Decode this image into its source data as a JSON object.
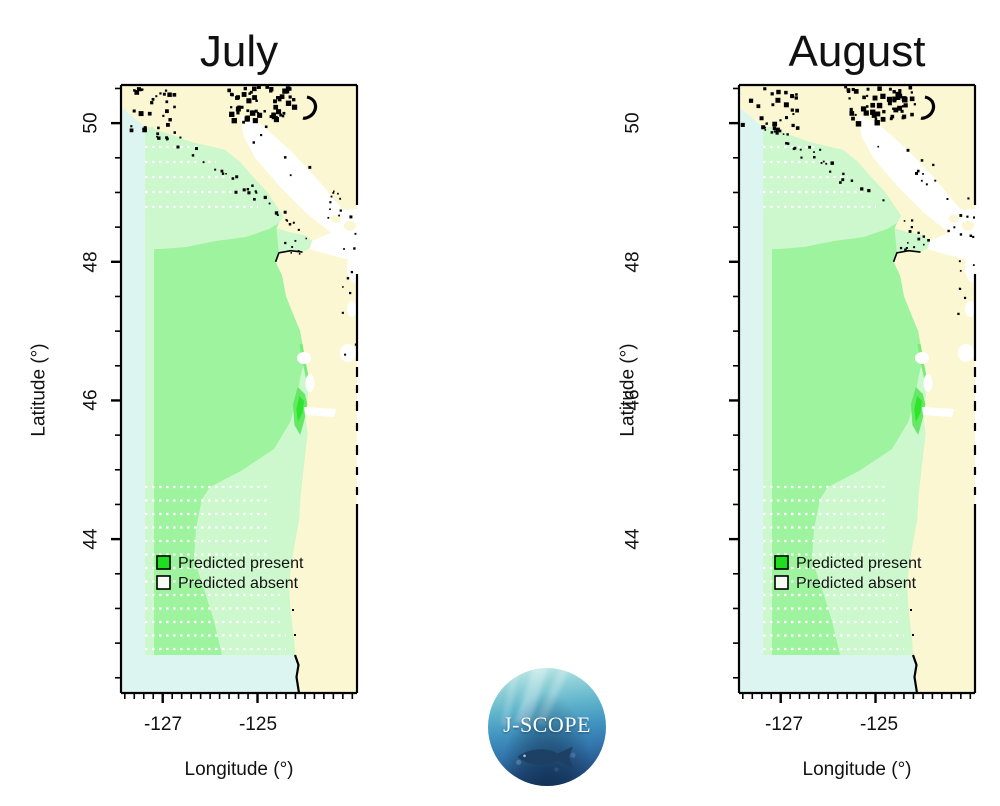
{
  "figure": {
    "background": "#FFFFFF",
    "panels": [
      {
        "title": "July",
        "xlabel": "Longitude (°)",
        "ylabel": "Latitude (°)",
        "xticks": [
          "-127",
          "-125"
        ],
        "yticks": [
          "50",
          "48",
          "46",
          "44"
        ],
        "legend": {
          "present_label": "Predicted present",
          "absent_label": "Predicted absent",
          "present_color": "#1FDE1F",
          "absent_color": "#F4FCF4"
        }
      },
      {
        "title": "August",
        "xlabel": "Longitude (°)",
        "ylabel": "Latitude (°)",
        "xticks": [
          "-127",
          "-125"
        ],
        "yticks": [
          "50",
          "48",
          "46",
          "44"
        ],
        "legend": {
          "present_label": "Predicted present",
          "absent_label": "Predicted absent",
          "present_color": "#1FDE1F",
          "absent_color": "#F4FCF4"
        }
      }
    ],
    "logo": {
      "text": "J-SCOPE"
    },
    "colors": {
      "land": "#FBF7D3",
      "outside_ocean": "#DCF5F1",
      "present_main": "#9EF39E",
      "present_light": "#CDF8CD",
      "present_bright_mid": "#66E866",
      "present_bright": "#2EE52E",
      "absent_water": "#FFFFFF",
      "coast_detail": "#000000",
      "frame": "#000000"
    }
  },
  "chart_data": [
    {
      "type": "map",
      "title": "July",
      "xlabel": "Longitude (°)",
      "ylabel": "Latitude (°)",
      "x_range": [
        -127.9,
        -122.9
      ],
      "y_range": [
        41.8,
        50.55
      ],
      "xticks": [
        -127,
        -125
      ],
      "yticks": [
        44,
        46,
        48,
        50
      ],
      "legend": [
        "Predicted present",
        "Predicted absent"
      ],
      "description": "Coastal map of the Pacific Northwest (Vancouver Island to southern Oregon). Green shading along the continental shelf marks where the species is predicted present; white inland waters (Strait of Georgia, Strait of Juan de Fuca, Puget Sound, coastal estuaries) are predicted absent; pale yellow is land; pale blue is ocean outside the model domain; rows of white station dots appear in the north and south of the green field; a bright green plume sits near the Columbia River mouth."
    },
    {
      "type": "map",
      "title": "August",
      "xlabel": "Longitude (°)",
      "ylabel": "Latitude (°)",
      "x_range": [
        -127.9,
        -122.9
      ],
      "y_range": [
        41.8,
        50.55
      ],
      "xticks": [
        -127,
        -125
      ],
      "yticks": [
        44,
        46,
        48,
        50
      ],
      "legend": [
        "Predicted present",
        "Predicted absent"
      ],
      "description": "Same spatial prediction layout as July with nearly identical predicted-present coverage of the shelf."
    }
  ]
}
